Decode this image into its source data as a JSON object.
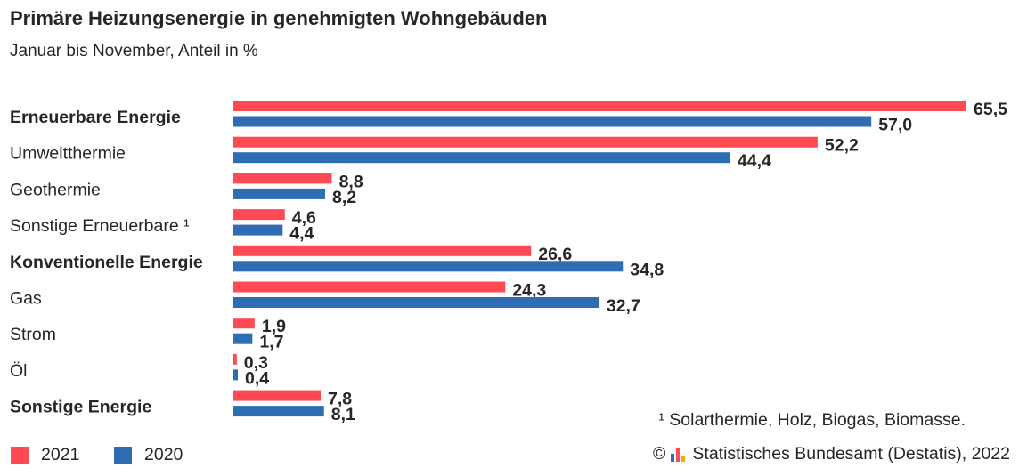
{
  "header": {
    "title": "Primäre Heizungsenergie in genehmigten Wohngebäuden",
    "subtitle": "Januar bis November, Anteil in %"
  },
  "chart_data": {
    "type": "bar",
    "orientation": "horizontal",
    "categories": [
      "Erneuerbare Energie",
      "Umweltthermie",
      "Geothermie",
      "Sonstige Erneuerbare ¹",
      "Konventionelle Energie",
      "Gas",
      "Strom",
      "Öl",
      "Sonstige Energie"
    ],
    "bold_categories": [
      "Erneuerbare Energie",
      "Konventionelle Energie",
      "Sonstige Energie"
    ],
    "series": [
      {
        "name": "2021",
        "color": "#ff4a55",
        "values": [
          65.5,
          52.2,
          8.8,
          4.6,
          26.6,
          24.3,
          1.9,
          0.3,
          7.8
        ],
        "labels": [
          "65,5",
          "52,2",
          "8,8",
          "4,6",
          "26,6",
          "24,3",
          "1,9",
          "0,3",
          "7,8"
        ]
      },
      {
        "name": "2020",
        "color": "#2e6db4",
        "values": [
          57.0,
          44.4,
          8.2,
          4.4,
          34.8,
          32.7,
          1.7,
          0.4,
          8.1
        ],
        "labels": [
          "57,0",
          "44,4",
          "8,2",
          "4,4",
          "34,8",
          "32,7",
          "1,7",
          "0,4",
          "8,1"
        ]
      }
    ],
    "xlim": [
      0,
      65.5
    ],
    "grid": false,
    "legend_placement": "bottom-left"
  },
  "footer": {
    "footnote": "¹ Solarthermie, Holz, Biogas, Biomasse.",
    "copyright": "©",
    "source": "Statistisches Bundesamt (Destatis), 2022"
  }
}
